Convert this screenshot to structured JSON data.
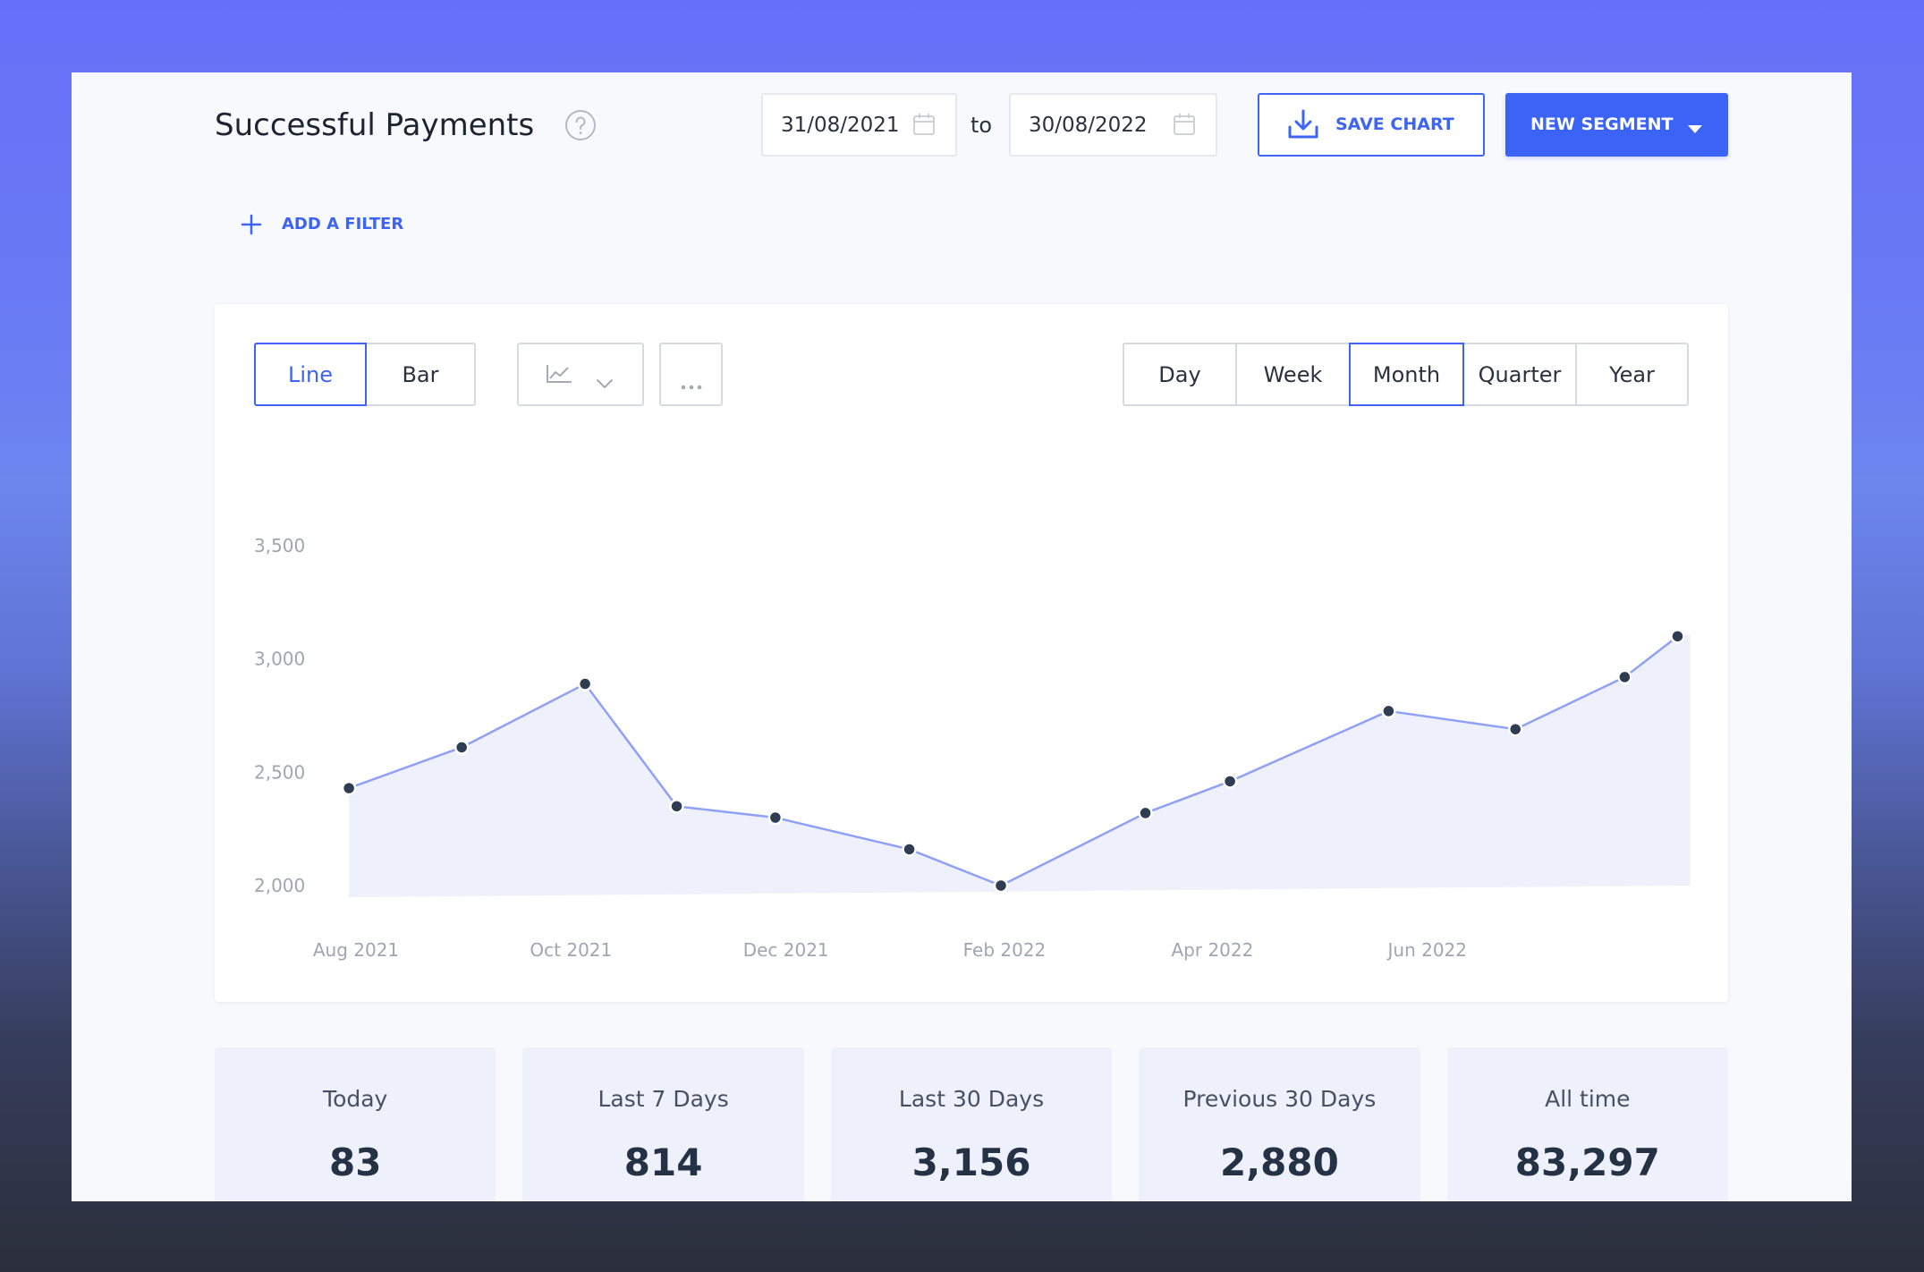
{
  "header": {
    "title": "Successful Payments",
    "help_icon": "question-circle-icon",
    "date_range": {
      "from": "31/08/2021",
      "separator": "to",
      "to": "30/08/2022",
      "icon": "calendar-icon"
    },
    "save_chart": {
      "label": "SAVE CHART",
      "icon": "download-icon"
    },
    "new_segment": {
      "label": "NEW SEGMENT",
      "icon": "caret-down-icon"
    }
  },
  "filter": {
    "label": "ADD A FILTER",
    "icon": "plus-icon"
  },
  "chart_controls": {
    "chart_types": [
      {
        "label": "Line",
        "selected": true
      },
      {
        "label": "Bar",
        "selected": false
      }
    ],
    "chart_style_dropdown": {
      "icon": "line-chart-icon",
      "caret_icon": "chevron-down-icon"
    },
    "more_menu": {
      "icon": "more-horizontal-icon"
    },
    "periods": [
      {
        "label": "Day",
        "selected": false
      },
      {
        "label": "Week",
        "selected": false
      },
      {
        "label": "Month",
        "selected": true
      },
      {
        "label": "Quarter",
        "selected": false
      },
      {
        "label": "Year",
        "selected": false
      }
    ]
  },
  "chart_data": {
    "type": "line",
    "area_fill": true,
    "grid": false,
    "x_axis": {
      "type": "date",
      "ticks": [
        {
          "date": "2021-08-01",
          "label": "Aug 2021"
        },
        {
          "date": "2021-10-01",
          "label": "Oct 2021"
        },
        {
          "date": "2021-12-01",
          "label": "Dec 2021"
        },
        {
          "date": "2022-02-01",
          "label": "Feb 2022"
        },
        {
          "date": "2022-04-01",
          "label": "Apr 2022"
        },
        {
          "date": "2022-06-01",
          "label": "Jun 2022"
        }
      ]
    },
    "y_axis": {
      "range": [
        2000,
        3500
      ],
      "ticks": [
        {
          "value": 3500,
          "label": "3,500"
        },
        {
          "value": 3000,
          "label": "3,000"
        },
        {
          "value": 2500,
          "label": "2,500"
        },
        {
          "value": 2000,
          "label": "2,000"
        }
      ]
    },
    "series": [
      {
        "points": [
          {
            "x": "2021-07-30",
            "y": 2430
          },
          {
            "x": "2021-08-31",
            "y": 2610
          },
          {
            "x": "2021-10-05",
            "y": 2890
          },
          {
            "x": "2021-10-31",
            "y": 2350
          },
          {
            "x": "2021-11-28",
            "y": 2300
          },
          {
            "x": "2022-01-05",
            "y": 2160
          },
          {
            "x": "2022-01-31",
            "y": 2000
          },
          {
            "x": "2022-03-13",
            "y": 2320
          },
          {
            "x": "2022-04-06",
            "y": 2460
          },
          {
            "x": "2022-05-21",
            "y": 2770
          },
          {
            "x": "2022-06-26",
            "y": 2690
          },
          {
            "x": "2022-07-27",
            "y": 2920
          },
          {
            "x": "2022-08-11",
            "y": 3100
          }
        ]
      }
    ]
  },
  "stats": [
    {
      "label": "Today",
      "value": "83"
    },
    {
      "label": "Last 7 Days",
      "value": "814"
    },
    {
      "label": "Last 30 Days",
      "value": "3,156"
    },
    {
      "label": "Previous 30 Days",
      "value": "2,880"
    },
    {
      "label": "All time",
      "value": "83,297"
    }
  ],
  "colors": {
    "accent": "#3b63f5",
    "line": "#8fa1f6",
    "point": "#2f3d52",
    "area": "#eef0fb",
    "axis_text": "#a0a6b1",
    "stat_card": "#eef0fb"
  }
}
